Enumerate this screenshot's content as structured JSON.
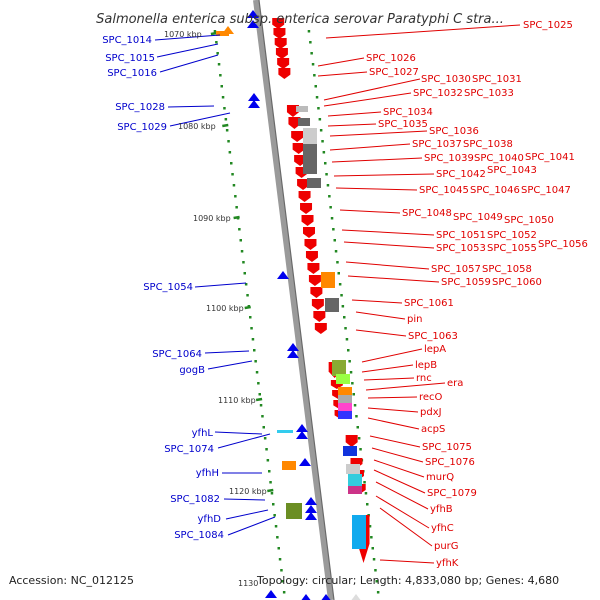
{
  "title": "Salmonella enterica subsp. enterica serovar Paratyphi C stra...",
  "footer": {
    "accession": "Accession: NC_012125",
    "topology": "Topology: circular; Length: 4,833,080 bp; Genes: 4,680"
  },
  "colors": {
    "left_label": "#0000cc",
    "right_label": "#e00000",
    "axis": "#888888",
    "tick": "#228822",
    "forward_gene": "#ee0000",
    "reverse_gene": "#0000ee"
  },
  "kbp_ticks": [
    "1070 kbp",
    "1080 kbp",
    "1090 kbp",
    "1100 kbp",
    "1110 kbp",
    "1120 kbp",
    "1130"
  ],
  "left_labels": [
    "SPC_1014",
    "SPC_1015",
    "SPC_1016",
    "SPC_1028",
    "SPC_1029",
    "SPC_1054",
    "SPC_1064",
    "gogB",
    "yfhL",
    "SPC_1074",
    "yfhH",
    "SPC_1082",
    "yfhD",
    "SPC_1084"
  ],
  "right_labels": [
    "SPC_1025",
    "SPC_1026",
    "SPC_1027",
    "SPC_1030",
    "SPC_1031",
    "SPC_1032",
    "SPC_1033",
    "SPC_1034",
    "SPC_1035",
    "SPC_1036",
    "SPC_1037",
    "SPC_1038",
    "SPC_1039",
    "SPC_1040",
    "SPC_1041",
    "SPC_1042",
    "SPC_1043",
    "SPC_1045",
    "SPC_1046",
    "SPC_1047",
    "SPC_1048",
    "SPC_1049",
    "SPC_1050",
    "SPC_1051",
    "SPC_1052",
    "SPC_1053",
    "SPC_1055",
    "SPC_1056",
    "SPC_1057",
    "SPC_1058",
    "SPC_1059",
    "SPC_1060",
    "SPC_1061",
    "pin",
    "SPC_1063",
    "lepA",
    "lepB",
    "rnc",
    "era",
    "recO",
    "pdxJ",
    "acpS",
    "SPC_1075",
    "SPC_1076",
    "murQ",
    "SPC_1079",
    "yfhB",
    "yfhC",
    "purG",
    "yfhK"
  ]
}
